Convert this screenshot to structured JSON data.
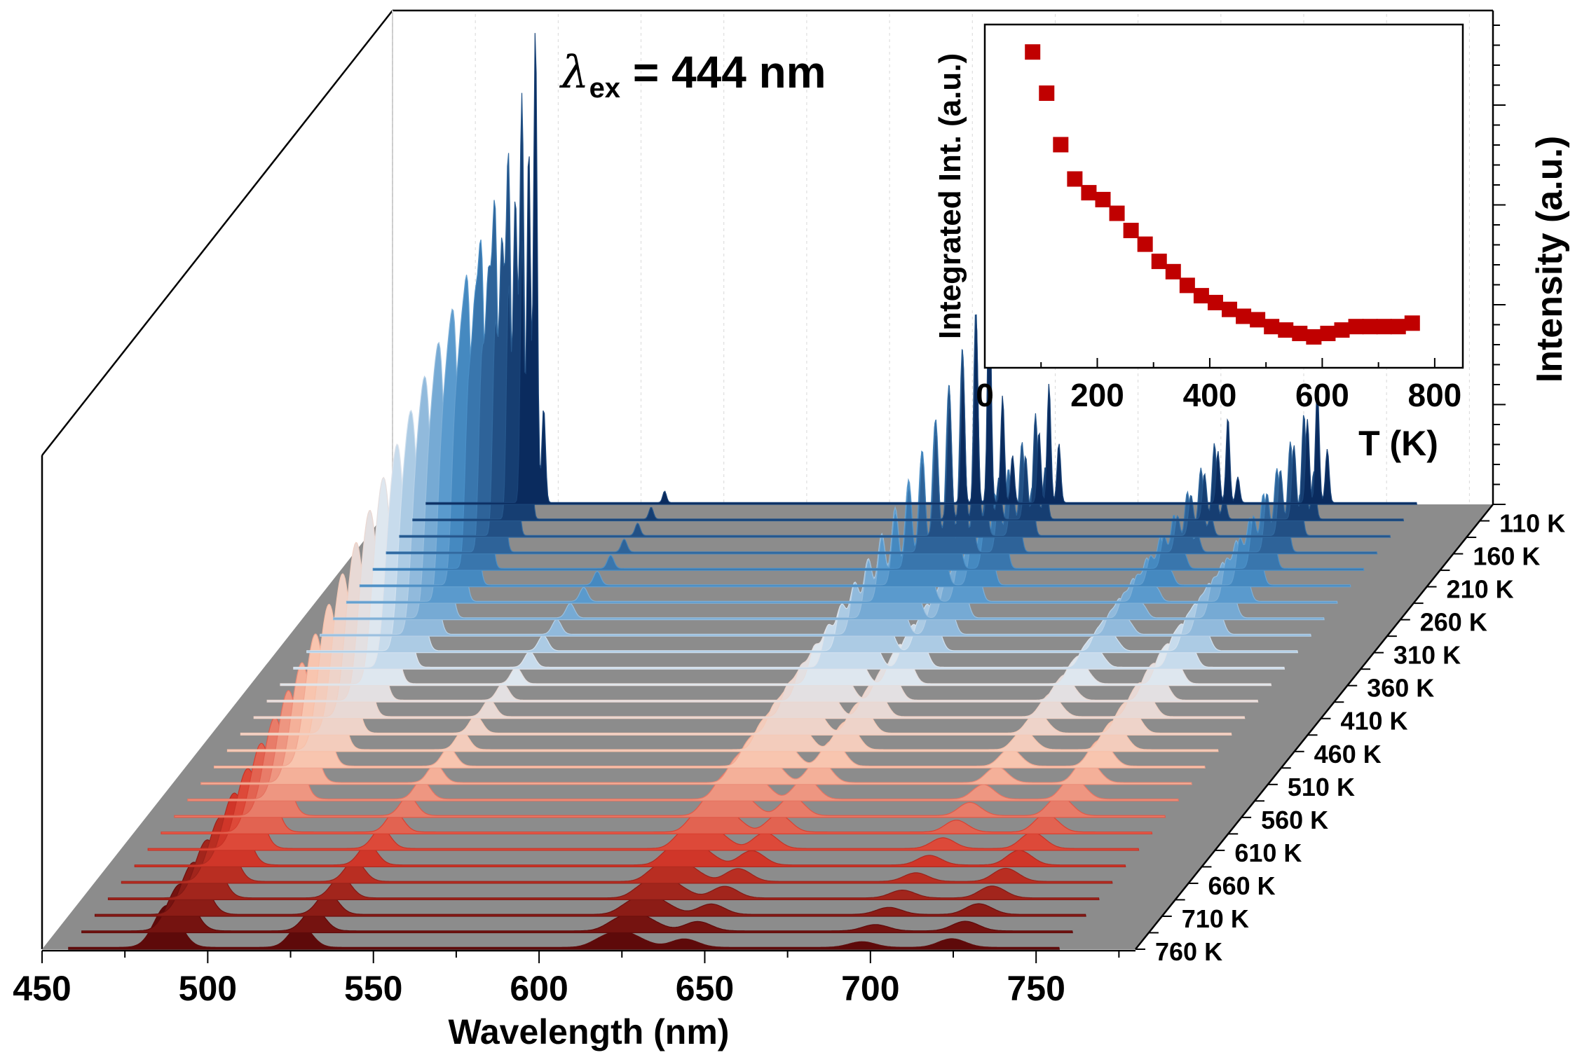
{
  "figure": {
    "annotation_lambda": "λ",
    "annotation_sub": "ex",
    "annotation_value": " = 444 nm"
  },
  "chart_data": [
    {
      "type": "waterfall-3d-line",
      "xlabel": "Wavelength (nm)",
      "ylabel": "Intensity (a.u.)",
      "xlim": [
        450,
        780
      ],
      "x_ticks": [
        450,
        500,
        550,
        600,
        650,
        700,
        750
      ],
      "depth_tick_labels": [
        "110 K",
        "160 K",
        "210 K",
        "260 K",
        "310 K",
        "360 K",
        "410 K",
        "460 K",
        "510 K",
        "560 K",
        "610 K",
        "660 K",
        "710 K",
        "760 K"
      ],
      "temperatures_K": [
        85,
        110,
        135,
        160,
        185,
        210,
        235,
        260,
        285,
        310,
        335,
        360,
        385,
        410,
        435,
        460,
        485,
        510,
        535,
        560,
        585,
        610,
        635,
        660,
        685,
        710,
        735,
        760
      ],
      "peaks": [
        {
          "center_nm": 491,
          "relative_height_at_85K": 1.0
        },
        {
          "center_nm": 530,
          "relative_height_at_85K": 0.04
        },
        {
          "center_nm": 628,
          "relative_height_at_85K": 0.5
        },
        {
          "center_nm": 646,
          "relative_height_at_85K": 0.25
        },
        {
          "center_nm": 700,
          "relative_height_at_85K": 0.18
        },
        {
          "center_nm": 727,
          "relative_height_at_85K": 0.25
        }
      ],
      "color_scale": [
        "#0a2b5e",
        "#4a90c8",
        "#dde8f2",
        "#f9c4ac",
        "#d93a2b",
        "#5e0a0a"
      ],
      "floor_color": "#8c8c8c"
    },
    {
      "type": "scatter",
      "xlabel": "T (K)",
      "ylabel": "Integrated Int. (a.u.)",
      "xlim": [
        0,
        850
      ],
      "ylim": [
        0,
        1.0
      ],
      "x_ticks": [
        0,
        200,
        400,
        600,
        800
      ],
      "marker_color": "#c00000",
      "x": [
        85,
        110,
        135,
        160,
        185,
        210,
        235,
        260,
        285,
        310,
        335,
        360,
        385,
        410,
        435,
        460,
        485,
        510,
        535,
        560,
        585,
        610,
        635,
        660,
        685,
        710,
        735,
        760
      ],
      "y": [
        0.92,
        0.8,
        0.65,
        0.55,
        0.51,
        0.49,
        0.45,
        0.4,
        0.36,
        0.31,
        0.28,
        0.24,
        0.21,
        0.19,
        0.17,
        0.15,
        0.14,
        0.12,
        0.11,
        0.1,
        0.09,
        0.1,
        0.11,
        0.12,
        0.12,
        0.12,
        0.12,
        0.13
      ]
    }
  ]
}
